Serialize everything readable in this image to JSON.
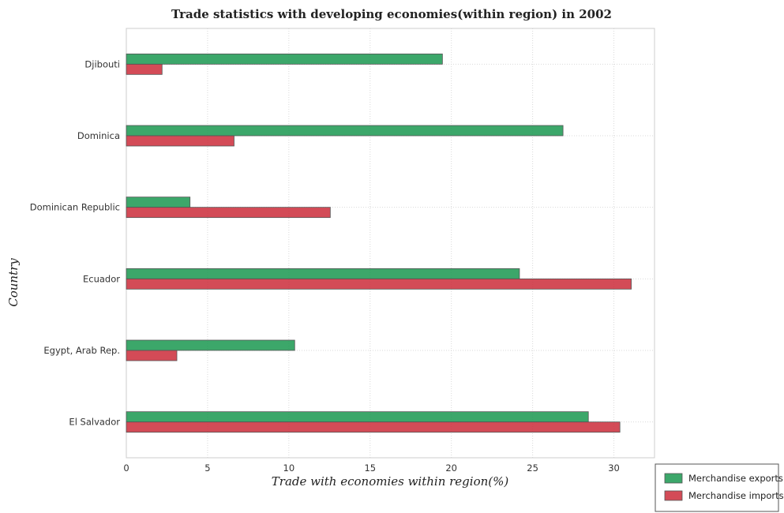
{
  "chart_data": {
    "type": "bar",
    "orientation": "horizontal",
    "title": "Trade statistics with developing economies(within region) in 2002",
    "xlabel": "Trade with economies within region(%)",
    "ylabel": "Country",
    "categories": [
      "Djibouti",
      "Dominica",
      "Dominican Republic",
      "Ecuador",
      "Egypt, Arab Rep.",
      "El Salvador"
    ],
    "series": [
      {
        "name": "Merchandise exports",
        "color": "#1a9850",
        "values": [
          19.45,
          26.87,
          3.92,
          24.19,
          10.36,
          28.43
        ]
      },
      {
        "name": "Merchandise imports",
        "color": "#cb2c3a",
        "values": [
          2.2,
          6.63,
          12.55,
          31.07,
          3.11,
          30.37
        ]
      }
    ],
    "xlim": [
      0,
      32.5
    ],
    "xticks": [
      "0",
      "5",
      "10",
      "15",
      "20",
      "25",
      "30"
    ],
    "grid": true,
    "legend_position": "bottom-right"
  }
}
